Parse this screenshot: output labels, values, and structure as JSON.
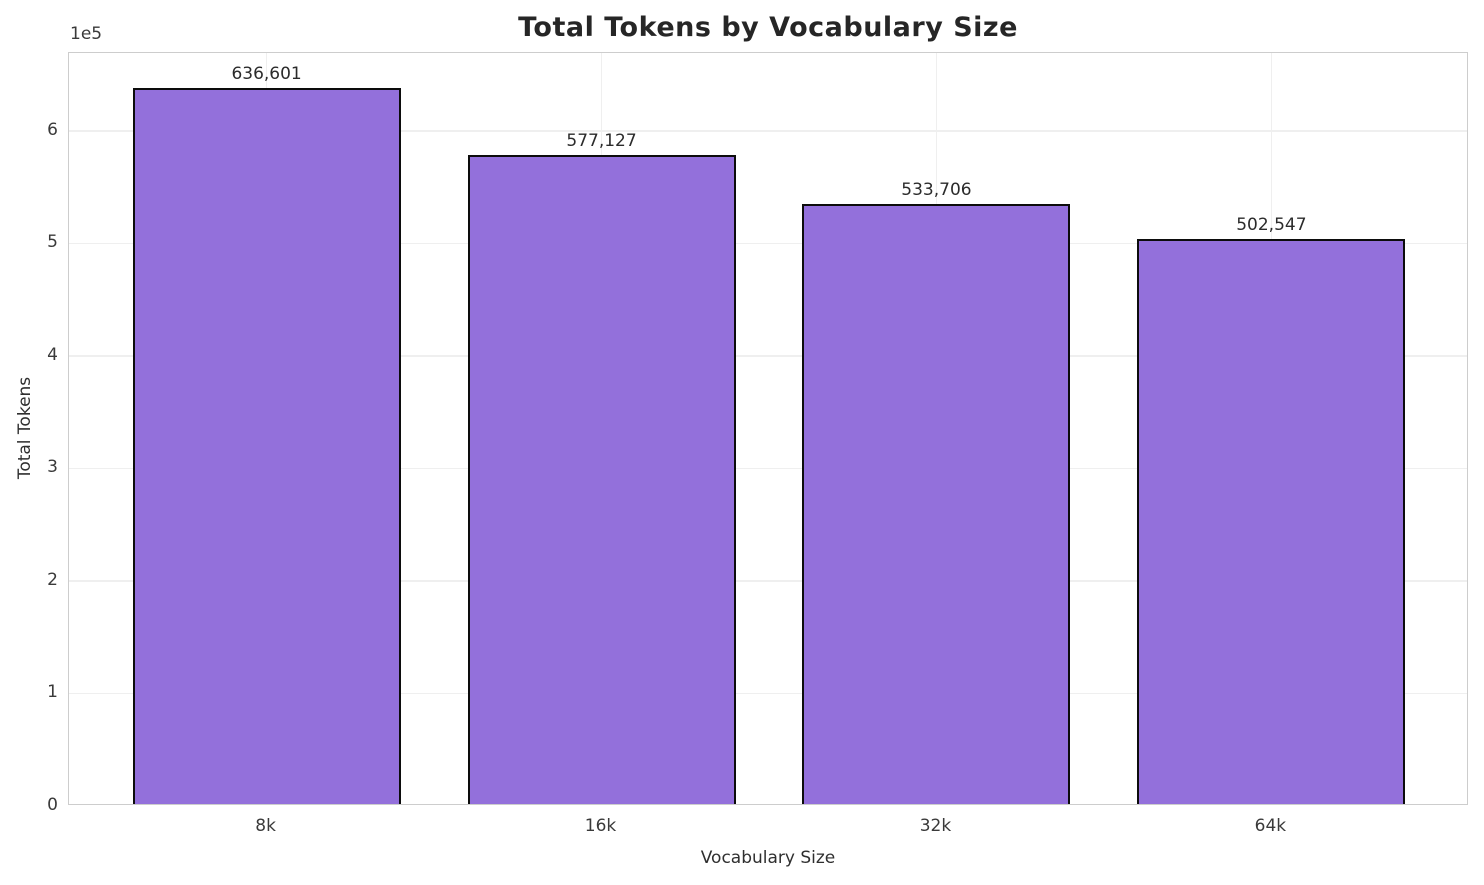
{
  "chart_data": {
    "type": "bar",
    "title": "Total Tokens by Vocabulary Size",
    "xlabel": "Vocabulary Size",
    "ylabel": "Total Tokens",
    "y_offset_label": "1e5",
    "categories": [
      "8k",
      "16k",
      "32k",
      "64k"
    ],
    "values": [
      636601,
      577127,
      533706,
      502547
    ],
    "value_labels": [
      "636,601",
      "577,127",
      "533,706",
      "502,547"
    ],
    "y_ticks": [
      0,
      1,
      2,
      3,
      4,
      5,
      6
    ],
    "y_tick_unit": 100000,
    "ylim": [
      0,
      669333
    ],
    "grid": true,
    "legend": null,
    "bar_color": "#9370DB",
    "bar_edge_color": "#0c0c0c",
    "grid_color": "#efefef",
    "spine_color": "#cdcdcd",
    "title_color": "#262626",
    "text_color": "#3a3a3a"
  }
}
